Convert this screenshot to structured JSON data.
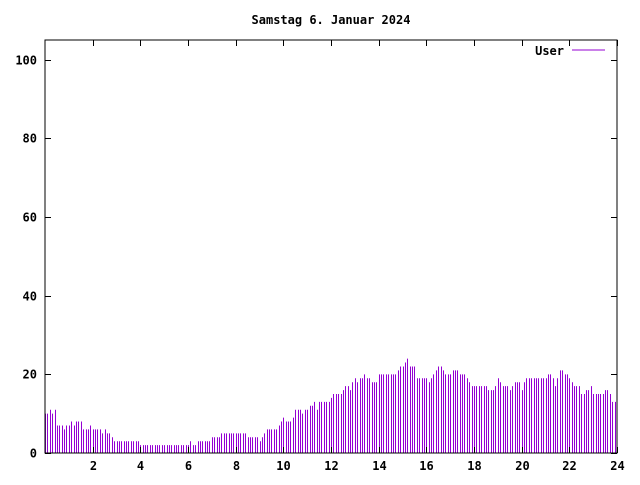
{
  "chart_data": {
    "type": "bar",
    "title": "Samstag 6. Januar 2024",
    "xlabel": "",
    "ylabel": "",
    "xlim": [
      0,
      24
    ],
    "ylim": [
      0,
      105
    ],
    "x_ticks": [
      {
        "value": 2,
        "label": "2"
      },
      {
        "value": 4,
        "label": "4"
      },
      {
        "value": 6,
        "label": "6"
      },
      {
        "value": 8,
        "label": "8"
      },
      {
        "value": 10,
        "label": "10"
      },
      {
        "value": 12,
        "label": "12"
      },
      {
        "value": 14,
        "label": "14"
      },
      {
        "value": 16,
        "label": "16"
      },
      {
        "value": 18,
        "label": "18"
      },
      {
        "value": 20,
        "label": "20"
      },
      {
        "value": 22,
        "label": "22"
      },
      {
        "value": 24,
        "label": "24"
      }
    ],
    "y_ticks": [
      {
        "value": 0,
        "label": "0"
      },
      {
        "value": 20,
        "label": "20"
      },
      {
        "value": 40,
        "label": "40"
      },
      {
        "value": 60,
        "label": "60"
      },
      {
        "value": 80,
        "label": "80"
      },
      {
        "value": 100,
        "label": "100"
      }
    ],
    "grid": false,
    "legend": {
      "position": "top-right"
    },
    "series": [
      {
        "name": "User",
        "color": "#9400d3",
        "step_hours": 0.1,
        "x_start": 0,
        "values": [
          10,
          10,
          11,
          10,
          11,
          7,
          7,
          7,
          6,
          7,
          7,
          8,
          7,
          8,
          8,
          8,
          6,
          6,
          6,
          7,
          6,
          6,
          6,
          6,
          5,
          6,
          5,
          5,
          4,
          3,
          3,
          3,
          3,
          3,
          3,
          3,
          3,
          3,
          3,
          3,
          2,
          2,
          2,
          2,
          2,
          2,
          2,
          2,
          2,
          2,
          2,
          2,
          2,
          2,
          2,
          2,
          2,
          2,
          2,
          2,
          2,
          3,
          2,
          2,
          3,
          3,
          3,
          3,
          3,
          3,
          4,
          4,
          4,
          4,
          5,
          5,
          5,
          5,
          5,
          5,
          5,
          5,
          5,
          5,
          5,
          4,
          4,
          4,
          4,
          4,
          3,
          4,
          5,
          6,
          6,
          6,
          6,
          6,
          7,
          8,
          9,
          8,
          8,
          8,
          9,
          11,
          11,
          11,
          10,
          11,
          11,
          12,
          12,
          13,
          11,
          13,
          13,
          13,
          13,
          13,
          14,
          15,
          15,
          15,
          15,
          16,
          17,
          17,
          16,
          18,
          19,
          18,
          19,
          19,
          20,
          19,
          19,
          18,
          18,
          18,
          20,
          20,
          20,
          20,
          20,
          20,
          20,
          20,
          21,
          22,
          22,
          23,
          24,
          22,
          22,
          22,
          19,
          19,
          19,
          19,
          19,
          18,
          19,
          20,
          21,
          22,
          22,
          21,
          20,
          20,
          20,
          21,
          21,
          21,
          20,
          20,
          20,
          19,
          18,
          17,
          17,
          17,
          17,
          17,
          17,
          17,
          16,
          16,
          16,
          17,
          19,
          18,
          17,
          17,
          17,
          16,
          17,
          18,
          18,
          18,
          16,
          18,
          19,
          19,
          19,
          19,
          19,
          19,
          19,
          19,
          19,
          20,
          20,
          19,
          17,
          19,
          21,
          21,
          20,
          20,
          19,
          18,
          17,
          17,
          17,
          15,
          15,
          16,
          16,
          17,
          15,
          15,
          15,
          15,
          15,
          16,
          16,
          15,
          13,
          13
        ]
      }
    ]
  }
}
